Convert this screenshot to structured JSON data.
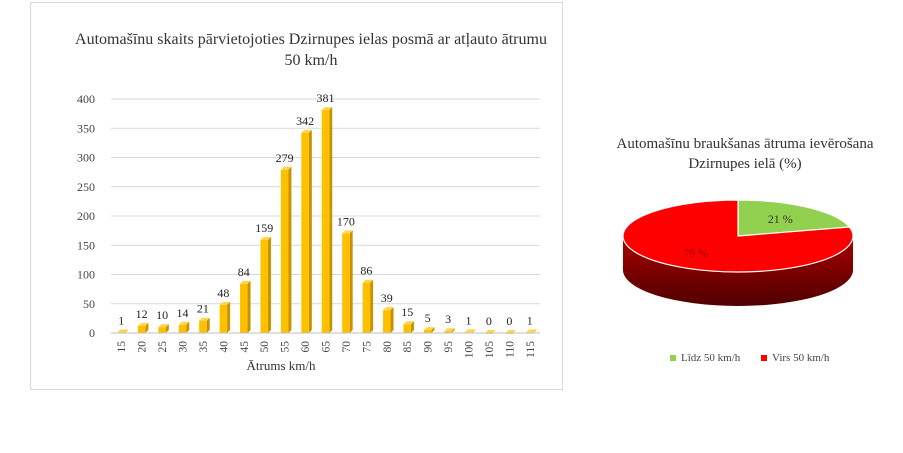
{
  "chart_data": [
    {
      "type": "bar",
      "title": "Automašīnu skaits pārvietojoties Dzirnupes ielas posmā ar atļauto ātrumu 50 km/h",
      "xlabel": "Ātrums km/h",
      "ylabel": "",
      "categories": [
        "15",
        "20",
        "25",
        "30",
        "35",
        "40",
        "45",
        "50",
        "55",
        "60",
        "65",
        "70",
        "75",
        "80",
        "85",
        "90",
        "95",
        "100",
        "105",
        "110",
        "115"
      ],
      "values": [
        1,
        12,
        10,
        14,
        21,
        48,
        84,
        159,
        279,
        342,
        381,
        170,
        86,
        39,
        15,
        5,
        3,
        1,
        0,
        0,
        1
      ],
      "ylim": [
        0,
        400
      ],
      "yticks": [
        0,
        50,
        100,
        150,
        200,
        250,
        300,
        350,
        400
      ],
      "grid": true,
      "bar_color": "#FFC000",
      "data_labels": true
    },
    {
      "type": "pie",
      "title": "Automašīnu braukšanas ātruma ievērošana Dzirnupes ielā (%)",
      "slices": [
        {
          "label": "Līdz 50 km/h",
          "value": 21,
          "data_label": "21 %",
          "color": "#92D050"
        },
        {
          "label": "Virs 50 km/h",
          "value": 79,
          "data_label": "79 %",
          "color": "#FF0000"
        }
      ],
      "legend_position": "bottom"
    }
  ]
}
